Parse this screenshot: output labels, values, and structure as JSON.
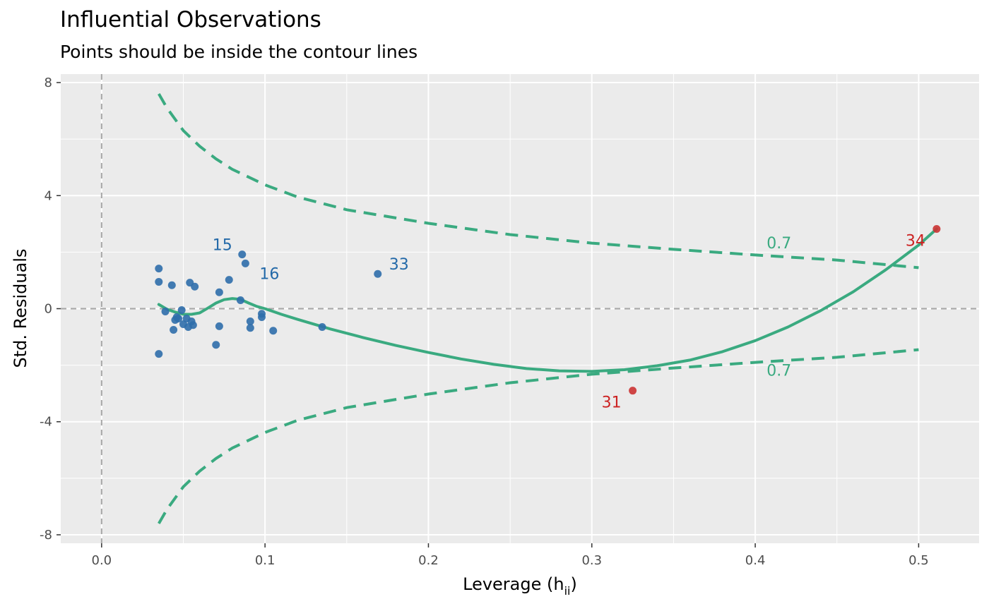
{
  "chart_data": {
    "type": "scatter",
    "title": "Influential Observations",
    "subtitle": "Points should be inside the contour lines",
    "xlabel": "Leverage (h",
    "xlabel_sub": "ii",
    "xlabel_end": ")",
    "ylabel": "Std. Residuals",
    "xlim": [
      -0.025,
      0.537
    ],
    "ylim": [
      -8.3,
      8.3
    ],
    "x_ticks": [
      0.0,
      0.1,
      0.2,
      0.3,
      0.4,
      0.5
    ],
    "x_tick_labels": [
      "0.0",
      "0.1",
      "0.2",
      "0.3",
      "0.4",
      "0.5"
    ],
    "y_ticks": [
      -8,
      -4,
      0,
      4,
      8
    ],
    "y_tick_labels": [
      "-8",
      "-4",
      "0",
      "4",
      "8"
    ],
    "grid": true,
    "colors": {
      "panel": "#ebebeb",
      "grid": "#ffffff",
      "normal": "#2f6eab",
      "influential": "#cc3333",
      "normal_label": "#2369a8",
      "influential_label": "#cc2222",
      "contour": "#3aaa80",
      "reference": "#a6a6a6"
    },
    "reference_lines": {
      "x": 0,
      "y": 0
    },
    "points": [
      {
        "x": 0.035,
        "y": 1.42
      },
      {
        "x": 0.035,
        "y": 0.95
      },
      {
        "x": 0.035,
        "y": -1.6
      },
      {
        "x": 0.039,
        "y": -0.1
      },
      {
        "x": 0.043,
        "y": 0.83
      },
      {
        "x": 0.044,
        "y": -0.75
      },
      {
        "x": 0.045,
        "y": -0.4
      },
      {
        "x": 0.046,
        "y": -0.3
      },
      {
        "x": 0.047,
        "y": -0.35
      },
      {
        "x": 0.049,
        "y": -0.05
      },
      {
        "x": 0.05,
        "y": -0.55
      },
      {
        "x": 0.052,
        "y": -0.35
      },
      {
        "x": 0.053,
        "y": -0.65
      },
      {
        "x": 0.054,
        "y": 0.92
      },
      {
        "x": 0.055,
        "y": -0.45
      },
      {
        "x": 0.056,
        "y": -0.58
      },
      {
        "x": 0.057,
        "y": 0.78
      },
      {
        "x": 0.07,
        "y": -1.28
      },
      {
        "x": 0.072,
        "y": 0.58
      },
      {
        "x": 0.072,
        "y": -0.62
      },
      {
        "x": 0.078,
        "y": 1.02
      },
      {
        "x": 0.085,
        "y": 0.3
      },
      {
        "x": 0.086,
        "y": 1.92,
        "label": "15",
        "label_dx": -28,
        "label_dy": -6
      },
      {
        "x": 0.088,
        "y": 1.6,
        "label": "16",
        "label_dx": 34,
        "label_dy": 22
      },
      {
        "x": 0.091,
        "y": -0.45
      },
      {
        "x": 0.091,
        "y": -0.68
      },
      {
        "x": 0.098,
        "y": -0.18
      },
      {
        "x": 0.098,
        "y": -0.3
      },
      {
        "x": 0.105,
        "y": -0.78
      },
      {
        "x": 0.135,
        "y": -0.65
      },
      {
        "x": 0.169,
        "y": 1.23,
        "label": "33",
        "label_dx": 30,
        "label_dy": -6
      }
    ],
    "influential_points": [
      {
        "x": 0.325,
        "y": -2.9,
        "label": "31",
        "label_dx": -30,
        "label_dy": 24
      },
      {
        "x": 0.511,
        "y": 2.82,
        "label": "34",
        "label_dx": -30,
        "label_dy": 24
      }
    ],
    "smooth_line": [
      [
        0.035,
        0.15
      ],
      [
        0.04,
        -0.02
      ],
      [
        0.045,
        -0.12
      ],
      [
        0.05,
        -0.2
      ],
      [
        0.055,
        -0.2
      ],
      [
        0.06,
        -0.15
      ],
      [
        0.065,
        0.02
      ],
      [
        0.07,
        0.2
      ],
      [
        0.075,
        0.32
      ],
      [
        0.08,
        0.36
      ],
      [
        0.085,
        0.33
      ],
      [
        0.09,
        0.2
      ],
      [
        0.095,
        0.08
      ],
      [
        0.1,
        0.0
      ],
      [
        0.11,
        -0.2
      ],
      [
        0.12,
        -0.38
      ],
      [
        0.14,
        -0.72
      ],
      [
        0.16,
        -1.02
      ],
      [
        0.18,
        -1.3
      ],
      [
        0.2,
        -1.55
      ],
      [
        0.22,
        -1.78
      ],
      [
        0.24,
        -1.97
      ],
      [
        0.26,
        -2.12
      ],
      [
        0.28,
        -2.2
      ],
      [
        0.3,
        -2.22
      ],
      [
        0.32,
        -2.16
      ],
      [
        0.34,
        -2.02
      ],
      [
        0.36,
        -1.82
      ],
      [
        0.38,
        -1.52
      ],
      [
        0.4,
        -1.13
      ],
      [
        0.42,
        -0.65
      ],
      [
        0.44,
        -0.07
      ],
      [
        0.46,
        0.6
      ],
      [
        0.48,
        1.38
      ],
      [
        0.5,
        2.25
      ],
      [
        0.511,
        2.82
      ]
    ],
    "contour_upper": [
      [
        0.035,
        7.6
      ],
      [
        0.04,
        7.1
      ],
      [
        0.05,
        6.3
      ],
      [
        0.06,
        5.75
      ],
      [
        0.07,
        5.3
      ],
      [
        0.08,
        4.93
      ],
      [
        0.1,
        4.38
      ],
      [
        0.12,
        3.95
      ],
      [
        0.15,
        3.5
      ],
      [
        0.2,
        3.02
      ],
      [
        0.25,
        2.62
      ],
      [
        0.3,
        2.32
      ],
      [
        0.35,
        2.1
      ],
      [
        0.4,
        1.9
      ],
      [
        0.45,
        1.72
      ],
      [
        0.5,
        1.45
      ]
    ],
    "contour_lower": [
      [
        0.035,
        -7.6
      ],
      [
        0.04,
        -7.1
      ],
      [
        0.05,
        -6.3
      ],
      [
        0.06,
        -5.75
      ],
      [
        0.07,
        -5.3
      ],
      [
        0.08,
        -4.93
      ],
      [
        0.1,
        -4.38
      ],
      [
        0.12,
        -3.95
      ],
      [
        0.15,
        -3.5
      ],
      [
        0.2,
        -3.02
      ],
      [
        0.25,
        -2.62
      ],
      [
        0.3,
        -2.32
      ],
      [
        0.35,
        -2.1
      ],
      [
        0.4,
        -1.9
      ],
      [
        0.45,
        -1.72
      ],
      [
        0.5,
        -1.45
      ]
    ],
    "contour_labels": [
      {
        "x": 0.407,
        "y": 2.28,
        "text": "0.7"
      },
      {
        "x": 0.407,
        "y": -2.22,
        "text": "0.7"
      }
    ]
  }
}
